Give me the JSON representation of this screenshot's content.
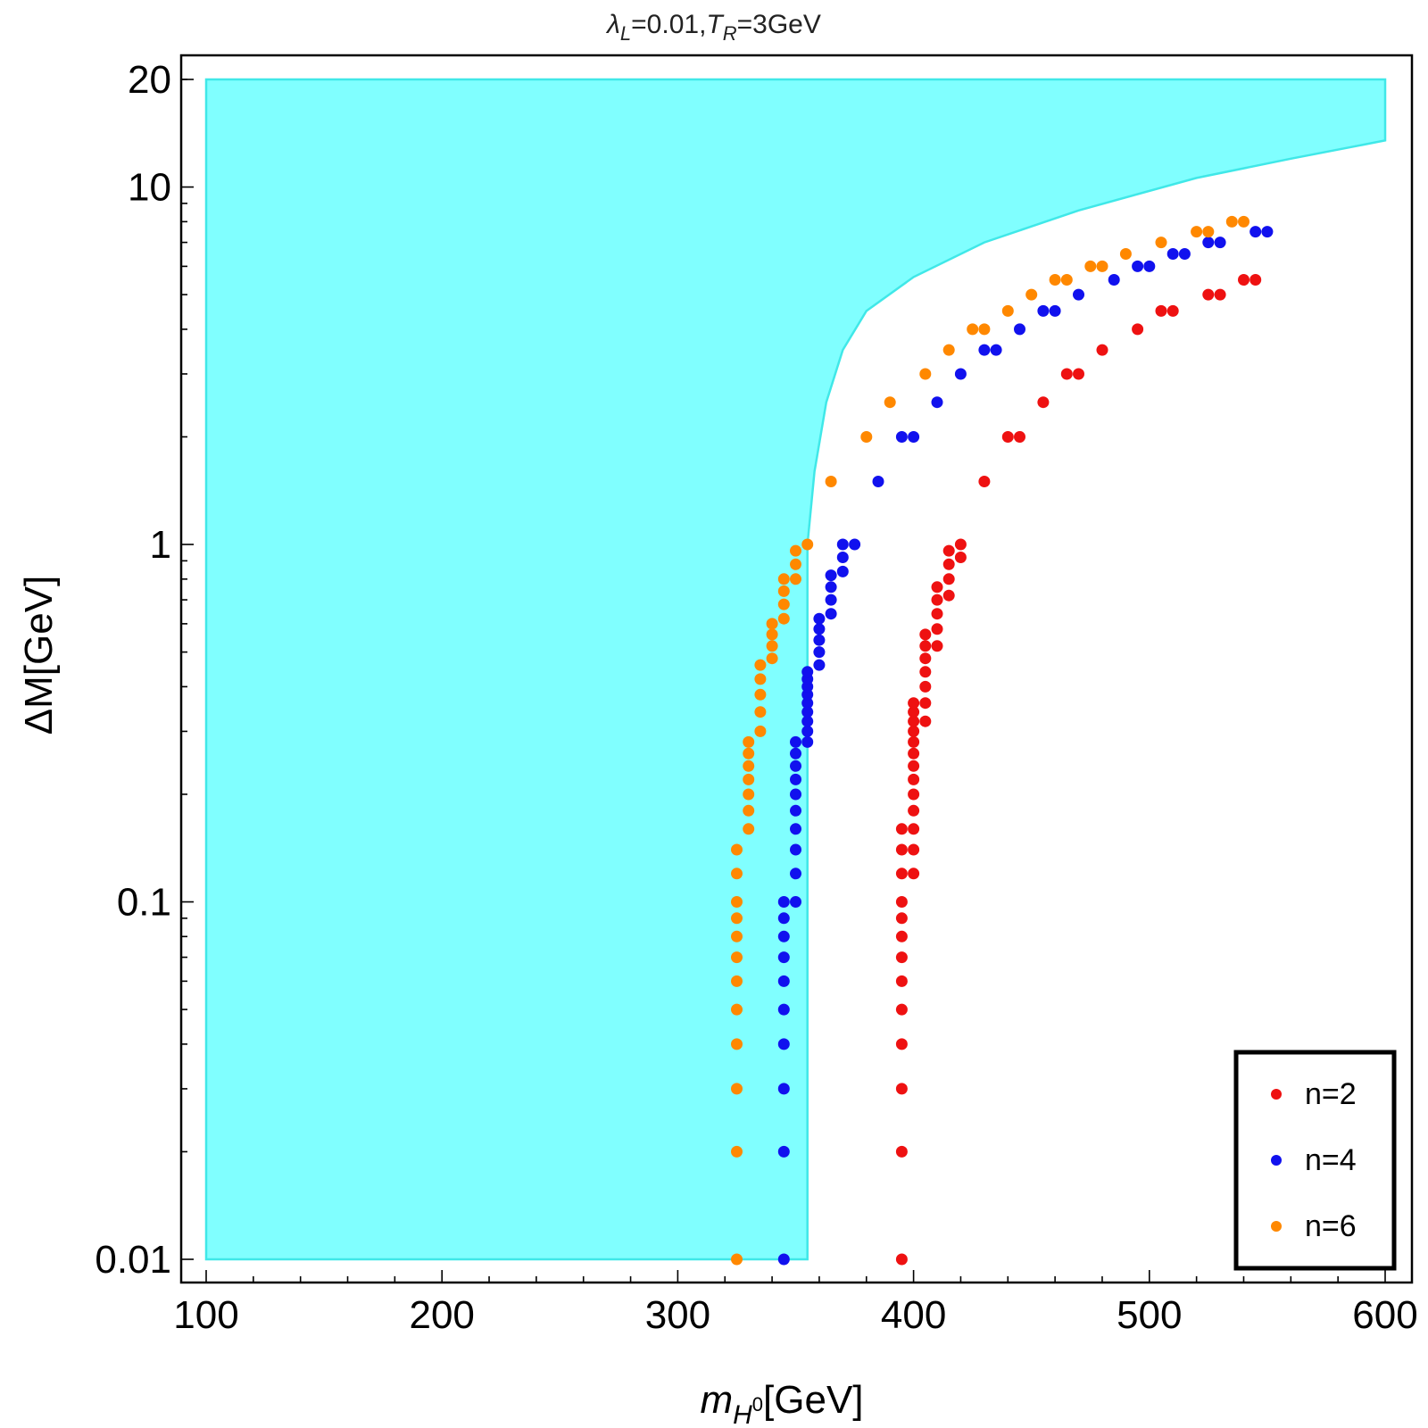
{
  "chart_data": {
    "type": "scatter",
    "title": {
      "lambda_sub": "L",
      "lambda_val": "=0.01,",
      "t_sub": "R",
      "t_val": "=3GeV"
    },
    "xlabel": {
      "main": "m",
      "sub": "H",
      "sup": "0",
      "unit": "[GeV]"
    },
    "ylabel": "ΔM[GeV]",
    "xlim": [
      100,
      600
    ],
    "ylim": [
      0.01,
      20
    ],
    "yscale": "log",
    "x_ticks": [
      100,
      200,
      300,
      400,
      500,
      600
    ],
    "x_tick_labels": [
      "100",
      "200",
      "300",
      "400",
      "500",
      "600"
    ],
    "y_ticks": [
      0.01,
      0.1,
      1,
      10,
      20
    ],
    "y_tick_labels": [
      "0.01",
      "0.1",
      "1",
      "10",
      "20"
    ],
    "legend_position": "bottom-right",
    "excluded_region": {
      "color": "#80ffff",
      "edge_color": "#40e8e8",
      "boundary": [
        [
          100,
          0.01
        ],
        [
          355,
          0.01
        ],
        [
          355,
          1
        ],
        [
          358,
          1.6
        ],
        [
          363,
          2.5
        ],
        [
          370,
          3.5
        ],
        [
          380,
          4.5
        ],
        [
          400,
          5.6
        ],
        [
          430,
          7.0
        ],
        [
          470,
          8.6
        ],
        [
          520,
          10.6
        ],
        [
          560,
          12.0
        ],
        [
          600,
          13.5
        ],
        [
          600,
          20
        ],
        [
          100,
          20
        ]
      ]
    },
    "series": [
      {
        "name": "n=2",
        "color": "#ee1111",
        "points": [
          [
            395,
            0.01
          ],
          [
            395,
            0.02
          ],
          [
            395,
            0.03
          ],
          [
            395,
            0.04
          ],
          [
            395,
            0.05
          ],
          [
            395,
            0.06
          ],
          [
            395,
            0.07
          ],
          [
            395,
            0.08
          ],
          [
            395,
            0.09
          ],
          [
            395,
            0.1
          ],
          [
            395,
            0.12
          ],
          [
            395,
            0.14
          ],
          [
            395,
            0.16
          ],
          [
            400,
            0.12
          ],
          [
            400,
            0.14
          ],
          [
            400,
            0.16
          ],
          [
            400,
            0.18
          ],
          [
            400,
            0.2
          ],
          [
            400,
            0.22
          ],
          [
            400,
            0.24
          ],
          [
            400,
            0.26
          ],
          [
            400,
            0.28
          ],
          [
            400,
            0.3
          ],
          [
            400,
            0.32
          ],
          [
            400,
            0.34
          ],
          [
            400,
            0.36
          ],
          [
            405,
            0.32
          ],
          [
            405,
            0.36
          ],
          [
            405,
            0.4
          ],
          [
            405,
            0.44
          ],
          [
            405,
            0.48
          ],
          [
            405,
            0.52
          ],
          [
            405,
            0.56
          ],
          [
            410,
            0.52
          ],
          [
            410,
            0.58
          ],
          [
            410,
            0.64
          ],
          [
            410,
            0.7
          ],
          [
            410,
            0.76
          ],
          [
            415,
            0.72
          ],
          [
            415,
            0.8
          ],
          [
            415,
            0.88
          ],
          [
            415,
            0.96
          ],
          [
            420,
            0.92
          ],
          [
            420,
            1.0
          ],
          [
            430,
            1.5
          ],
          [
            440,
            2.0
          ],
          [
            445,
            2.0
          ],
          [
            455,
            2.5
          ],
          [
            465,
            3.0
          ],
          [
            470,
            3.0
          ],
          [
            480,
            3.5
          ],
          [
            495,
            4.0
          ],
          [
            505,
            4.5
          ],
          [
            510,
            4.5
          ],
          [
            525,
            5.0
          ],
          [
            530,
            5.0
          ],
          [
            540,
            5.5
          ],
          [
            545,
            5.5
          ]
        ]
      },
      {
        "name": "n=4",
        "color": "#1111ee",
        "points": [
          [
            345,
            0.01
          ],
          [
            345,
            0.02
          ],
          [
            345,
            0.03
          ],
          [
            345,
            0.04
          ],
          [
            345,
            0.05
          ],
          [
            345,
            0.06
          ],
          [
            345,
            0.07
          ],
          [
            345,
            0.08
          ],
          [
            345,
            0.09
          ],
          [
            345,
            0.1
          ],
          [
            350,
            0.1
          ],
          [
            350,
            0.12
          ],
          [
            350,
            0.14
          ],
          [
            350,
            0.16
          ],
          [
            350,
            0.18
          ],
          [
            350,
            0.2
          ],
          [
            350,
            0.22
          ],
          [
            350,
            0.24
          ],
          [
            350,
            0.26
          ],
          [
            350,
            0.28
          ],
          [
            355,
            0.28
          ],
          [
            355,
            0.3
          ],
          [
            355,
            0.32
          ],
          [
            355,
            0.34
          ],
          [
            355,
            0.36
          ],
          [
            355,
            0.38
          ],
          [
            355,
            0.4
          ],
          [
            355,
            0.42
          ],
          [
            355,
            0.44
          ],
          [
            360,
            0.46
          ],
          [
            360,
            0.5
          ],
          [
            360,
            0.54
          ],
          [
            360,
            0.58
          ],
          [
            360,
            0.62
          ],
          [
            365,
            0.64
          ],
          [
            365,
            0.7
          ],
          [
            365,
            0.76
          ],
          [
            365,
            0.82
          ],
          [
            370,
            0.84
          ],
          [
            370,
            0.92
          ],
          [
            370,
            1.0
          ],
          [
            375,
            1.0
          ],
          [
            385,
            1.5
          ],
          [
            395,
            2.0
          ],
          [
            400,
            2.0
          ],
          [
            410,
            2.5
          ],
          [
            420,
            3.0
          ],
          [
            430,
            3.5
          ],
          [
            435,
            3.5
          ],
          [
            445,
            4.0
          ],
          [
            455,
            4.5
          ],
          [
            460,
            4.5
          ],
          [
            470,
            5.0
          ],
          [
            485,
            5.5
          ],
          [
            495,
            6.0
          ],
          [
            500,
            6.0
          ],
          [
            510,
            6.5
          ],
          [
            515,
            6.5
          ],
          [
            525,
            7.0
          ],
          [
            530,
            7.0
          ],
          [
            545,
            7.5
          ],
          [
            550,
            7.5
          ]
        ]
      },
      {
        "name": "n=6",
        "color": "#ff8800",
        "points": [
          [
            325,
            0.01
          ],
          [
            325,
            0.02
          ],
          [
            325,
            0.03
          ],
          [
            325,
            0.04
          ],
          [
            325,
            0.05
          ],
          [
            325,
            0.06
          ],
          [
            325,
            0.07
          ],
          [
            325,
            0.08
          ],
          [
            325,
            0.09
          ],
          [
            325,
            0.1
          ],
          [
            325,
            0.12
          ],
          [
            325,
            0.14
          ],
          [
            330,
            0.16
          ],
          [
            330,
            0.18
          ],
          [
            330,
            0.2
          ],
          [
            330,
            0.22
          ],
          [
            330,
            0.24
          ],
          [
            330,
            0.26
          ],
          [
            330,
            0.28
          ],
          [
            335,
            0.3
          ],
          [
            335,
            0.34
          ],
          [
            335,
            0.38
          ],
          [
            335,
            0.42
          ],
          [
            335,
            0.46
          ],
          [
            340,
            0.48
          ],
          [
            340,
            0.52
          ],
          [
            340,
            0.56
          ],
          [
            340,
            0.6
          ],
          [
            345,
            0.62
          ],
          [
            345,
            0.68
          ],
          [
            345,
            0.74
          ],
          [
            345,
            0.8
          ],
          [
            350,
            0.8
          ],
          [
            350,
            0.88
          ],
          [
            350,
            0.96
          ],
          [
            355,
            1.0
          ],
          [
            365,
            1.5
          ],
          [
            380,
            2.0
          ],
          [
            390,
            2.5
          ],
          [
            405,
            3.0
          ],
          [
            415,
            3.5
          ],
          [
            425,
            4.0
          ],
          [
            430,
            4.0
          ],
          [
            440,
            4.5
          ],
          [
            450,
            5.0
          ],
          [
            460,
            5.5
          ],
          [
            465,
            5.5
          ],
          [
            475,
            6.0
          ],
          [
            480,
            6.0
          ],
          [
            490,
            6.5
          ],
          [
            505,
            7.0
          ],
          [
            520,
            7.5
          ],
          [
            525,
            7.5
          ],
          [
            535,
            8.0
          ],
          [
            540,
            8.0
          ]
        ]
      }
    ]
  }
}
